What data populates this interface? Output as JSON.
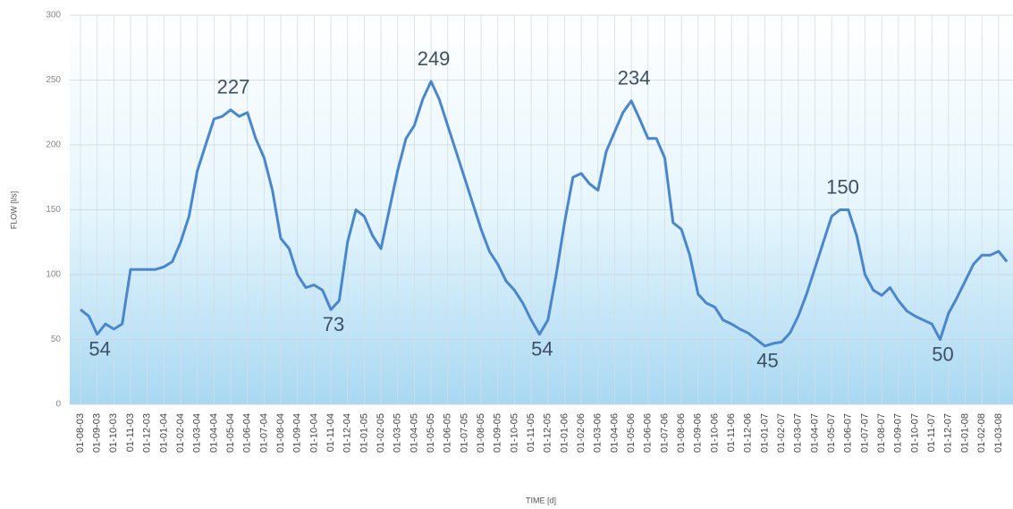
{
  "chart_data": {
    "type": "line",
    "x_label": "TIME [d]",
    "y_label": "FLOW [l/s]",
    "categories": [
      "01-08-03",
      null,
      "01-09-03",
      null,
      "01-10-03",
      null,
      "01-11-03",
      null,
      "01-12-03",
      null,
      "01-01-04",
      null,
      "01-02-04",
      null,
      "01-03-04",
      null,
      "01-04-04",
      null,
      "01-05-04",
      null,
      "01-06-04",
      null,
      "01-07-04",
      null,
      "01-08-04",
      null,
      "01-09-04",
      null,
      "01-10-04",
      null,
      "01-11-04",
      null,
      "01-12-04",
      null,
      "01-01-05",
      null,
      "01-02-05",
      null,
      "01-03-05",
      null,
      "01-04-05",
      null,
      "01-05-05",
      null,
      "01-06-05",
      null,
      "01-07-05",
      null,
      "01-08-05",
      null,
      "01-09-05",
      null,
      "01-10-05",
      null,
      "01-11-05",
      null,
      "01-12-05",
      null,
      "01-01-06",
      null,
      "01-02-06",
      null,
      "01-03-06",
      null,
      "01-04-06",
      null,
      "01-05-06",
      null,
      "01-06-06",
      null,
      "01-07-06",
      null,
      "01-08-06",
      null,
      "01-09-06",
      null,
      "01-10-06",
      null,
      "01-11-06",
      null,
      "01-12-06",
      null,
      "01-01-07",
      null,
      "01-02-07",
      null,
      "01-03-07",
      null,
      "01-04-07",
      null,
      "01-05-07",
      null,
      "01-06-07",
      null,
      "01-07-07",
      null,
      "01-08-07",
      null,
      "01-09-07",
      null,
      "01-10-07",
      null,
      "01-11-07",
      null,
      "01-12-07",
      null,
      "01-01-08",
      null,
      "01-02-08",
      null,
      "01-03-08",
      null
    ],
    "values": [
      73,
      68,
      54,
      62,
      58,
      62,
      104,
      104,
      104,
      104,
      106,
      110,
      125,
      145,
      180,
      200,
      220,
      222,
      227,
      222,
      225,
      205,
      190,
      165,
      128,
      120,
      100,
      90,
      92,
      88,
      73,
      80,
      125,
      150,
      145,
      130,
      120,
      150,
      180,
      205,
      215,
      235,
      249,
      235,
      215,
      195,
      175,
      155,
      135,
      118,
      108,
      95,
      88,
      78,
      65,
      54,
      65,
      100,
      140,
      175,
      178,
      170,
      165,
      195,
      210,
      225,
      234,
      220,
      205,
      205,
      190,
      140,
      135,
      115,
      85,
      78,
      75,
      65,
      62,
      58,
      55,
      50,
      45,
      47,
      48,
      55,
      68,
      85,
      105,
      125,
      145,
      150,
      150,
      130,
      100,
      88,
      84,
      90,
      80,
      72,
      68,
      65,
      62,
      50,
      70,
      82,
      95,
      108,
      115,
      115,
      118,
      110
    ],
    "value_labels": [
      null,
      null,
      "54",
      null,
      null,
      null,
      null,
      null,
      null,
      null,
      null,
      null,
      null,
      null,
      null,
      null,
      null,
      null,
      "227",
      null,
      null,
      null,
      null,
      null,
      null,
      null,
      null,
      null,
      null,
      null,
      "73",
      null,
      null,
      null,
      null,
      null,
      null,
      null,
      null,
      null,
      null,
      null,
      "249",
      null,
      null,
      null,
      null,
      null,
      null,
      null,
      null,
      null,
      null,
      null,
      null,
      "54",
      null,
      null,
      null,
      null,
      null,
      null,
      null,
      null,
      null,
      null,
      "234",
      null,
      null,
      null,
      null,
      null,
      null,
      null,
      null,
      null,
      null,
      null,
      null,
      null,
      null,
      null,
      "45",
      null,
      null,
      null,
      null,
      null,
      null,
      null,
      null,
      "150",
      null,
      null,
      null,
      null,
      null,
      null,
      null,
      null,
      null,
      null,
      null,
      "50",
      null,
      null,
      null,
      null,
      null,
      null,
      null,
      null
    ],
    "color": "#4a86d0",
    "ylim": [
      0,
      300
    ],
    "yticks": [
      0,
      50,
      100,
      150,
      200,
      250,
      300
    ],
    "grid": true
  }
}
